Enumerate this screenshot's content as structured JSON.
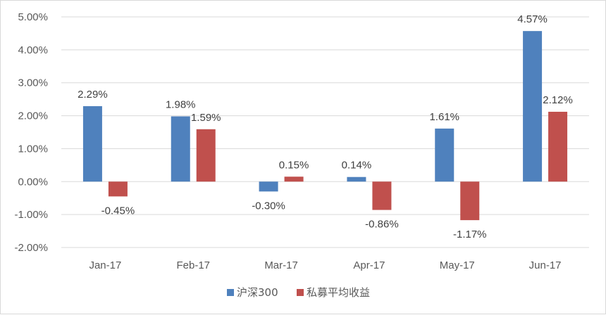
{
  "chart_data": {
    "type": "bar",
    "categories": [
      "Jan-17",
      "Feb-17",
      "Mar-17",
      "Apr-17",
      "May-17",
      "Jun-17"
    ],
    "series": [
      {
        "name": "沪深300",
        "color": "#4f81bd",
        "values": [
          2.29,
          1.98,
          -0.3,
          0.14,
          1.61,
          4.57
        ],
        "labels": [
          "2.29%",
          "1.98%",
          "-0.30%",
          "0.14%",
          "1.61%",
          "4.57%"
        ]
      },
      {
        "name": "私募平均收益",
        "color": "#c0504d",
        "values": [
          -0.45,
          1.59,
          0.15,
          -0.86,
          -1.17,
          2.12
        ],
        "labels": [
          "-0.45%",
          "1.59%",
          "0.15%",
          "-0.86%",
          "-1.17%",
          "2.12%"
        ]
      }
    ],
    "y_ticks": [
      5,
      4,
      3,
      2,
      1,
      0,
      -1,
      -2
    ],
    "y_tick_labels": [
      "5.00%",
      "4.00%",
      "3.00%",
      "2.00%",
      "1.00%",
      "0.00%",
      "-1.00%",
      "-2.00%"
    ],
    "ylim": [
      -2,
      5
    ],
    "grid": true,
    "legend_position": "bottom",
    "xlabel": "",
    "ylabel": "",
    "title": ""
  }
}
